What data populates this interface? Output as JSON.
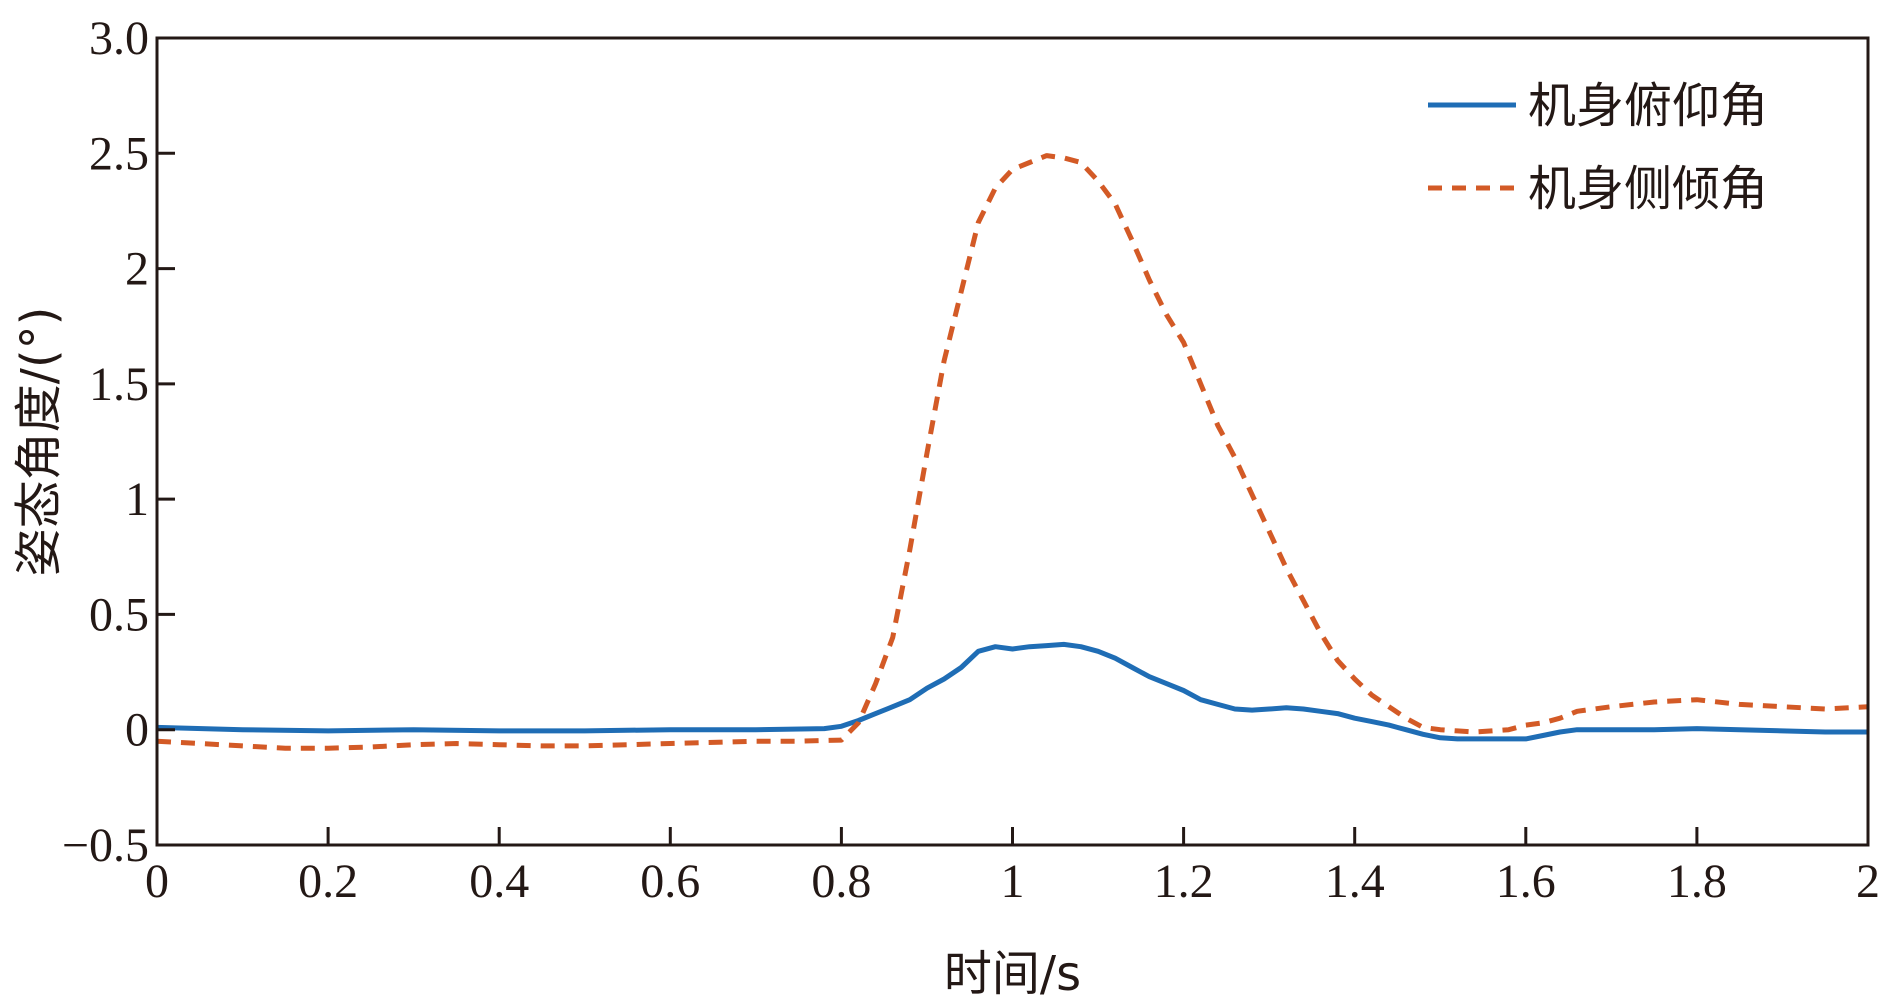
{
  "chart_data": {
    "type": "line",
    "xlabel": "时间/s",
    "ylabel": "姿态角度/(°)",
    "xlim": [
      0,
      2
    ],
    "ylim": [
      -0.5,
      3.0
    ],
    "x_ticks": [
      0,
      0.2,
      0.4,
      0.6,
      0.8,
      1,
      1.2,
      1.4,
      1.6,
      1.8,
      2
    ],
    "x_tick_labels": [
      "0",
      "0.2",
      "0.4",
      "0.6",
      "0.8",
      "1",
      "1.2",
      "1.4",
      "1.6",
      "1.8",
      "2"
    ],
    "y_ticks": [
      -0.5,
      0,
      0.5,
      1,
      1.5,
      2,
      2.5,
      3.0
    ],
    "y_tick_labels": [
      "−0.5",
      "0",
      "0.5",
      "1",
      "1.5",
      "2",
      "2.5",
      "3.0"
    ],
    "grid": false,
    "legend_position": "top-right",
    "series": [
      {
        "name": "机身俯仰角",
        "color": "#1f6db5",
        "style": "solid",
        "x": [
          0,
          0.1,
          0.2,
          0.3,
          0.4,
          0.5,
          0.6,
          0.7,
          0.78,
          0.8,
          0.82,
          0.84,
          0.86,
          0.88,
          0.9,
          0.92,
          0.94,
          0.96,
          0.98,
          1.0,
          1.02,
          1.04,
          1.06,
          1.08,
          1.1,
          1.12,
          1.14,
          1.16,
          1.18,
          1.2,
          1.22,
          1.24,
          1.26,
          1.28,
          1.3,
          1.32,
          1.34,
          1.36,
          1.38,
          1.4,
          1.42,
          1.44,
          1.46,
          1.48,
          1.5,
          1.52,
          1.54,
          1.56,
          1.58,
          1.6,
          1.62,
          1.64,
          1.66,
          1.7,
          1.75,
          1.8,
          1.85,
          1.9,
          1.95,
          2.0
        ],
        "y": [
          0.01,
          0.0,
          -0.005,
          0.0,
          -0.005,
          -0.005,
          0.0,
          0.0,
          0.005,
          0.015,
          0.04,
          0.07,
          0.1,
          0.13,
          0.18,
          0.22,
          0.27,
          0.34,
          0.36,
          0.35,
          0.36,
          0.365,
          0.37,
          0.36,
          0.34,
          0.31,
          0.27,
          0.23,
          0.2,
          0.17,
          0.13,
          0.11,
          0.09,
          0.085,
          0.09,
          0.095,
          0.09,
          0.08,
          0.07,
          0.05,
          0.035,
          0.02,
          0.0,
          -0.02,
          -0.035,
          -0.04,
          -0.04,
          -0.04,
          -0.04,
          -0.04,
          -0.025,
          -0.01,
          0.0,
          0.0,
          0.0,
          0.005,
          0.0,
          -0.005,
          -0.01,
          -0.01
        ]
      },
      {
        "name": "机身侧倾角",
        "color": "#d35a26",
        "style": "dashed",
        "x": [
          0,
          0.05,
          0.1,
          0.15,
          0.2,
          0.25,
          0.3,
          0.35,
          0.4,
          0.45,
          0.5,
          0.55,
          0.6,
          0.65,
          0.7,
          0.75,
          0.8,
          0.82,
          0.84,
          0.86,
          0.88,
          0.9,
          0.92,
          0.94,
          0.96,
          0.98,
          1.0,
          1.02,
          1.04,
          1.06,
          1.08,
          1.1,
          1.12,
          1.14,
          1.16,
          1.18,
          1.2,
          1.22,
          1.24,
          1.26,
          1.28,
          1.3,
          1.32,
          1.34,
          1.36,
          1.38,
          1.4,
          1.42,
          1.44,
          1.46,
          1.48,
          1.5,
          1.52,
          1.54,
          1.56,
          1.58,
          1.6,
          1.62,
          1.64,
          1.66,
          1.7,
          1.75,
          1.8,
          1.85,
          1.9,
          1.95,
          2.0
        ],
        "y": [
          -0.05,
          -0.06,
          -0.07,
          -0.08,
          -0.08,
          -0.075,
          -0.065,
          -0.06,
          -0.065,
          -0.07,
          -0.07,
          -0.065,
          -0.06,
          -0.055,
          -0.05,
          -0.05,
          -0.045,
          0.03,
          0.2,
          0.4,
          0.78,
          1.2,
          1.6,
          1.9,
          2.2,
          2.35,
          2.43,
          2.46,
          2.49,
          2.48,
          2.46,
          2.38,
          2.28,
          2.12,
          1.95,
          1.8,
          1.68,
          1.5,
          1.32,
          1.18,
          1.02,
          0.86,
          0.7,
          0.56,
          0.42,
          0.3,
          0.22,
          0.15,
          0.1,
          0.05,
          0.01,
          0.0,
          -0.005,
          -0.01,
          -0.005,
          0.0,
          0.02,
          0.03,
          0.05,
          0.08,
          0.1,
          0.12,
          0.13,
          0.11,
          0.1,
          0.09,
          0.1
        ]
      }
    ]
  }
}
